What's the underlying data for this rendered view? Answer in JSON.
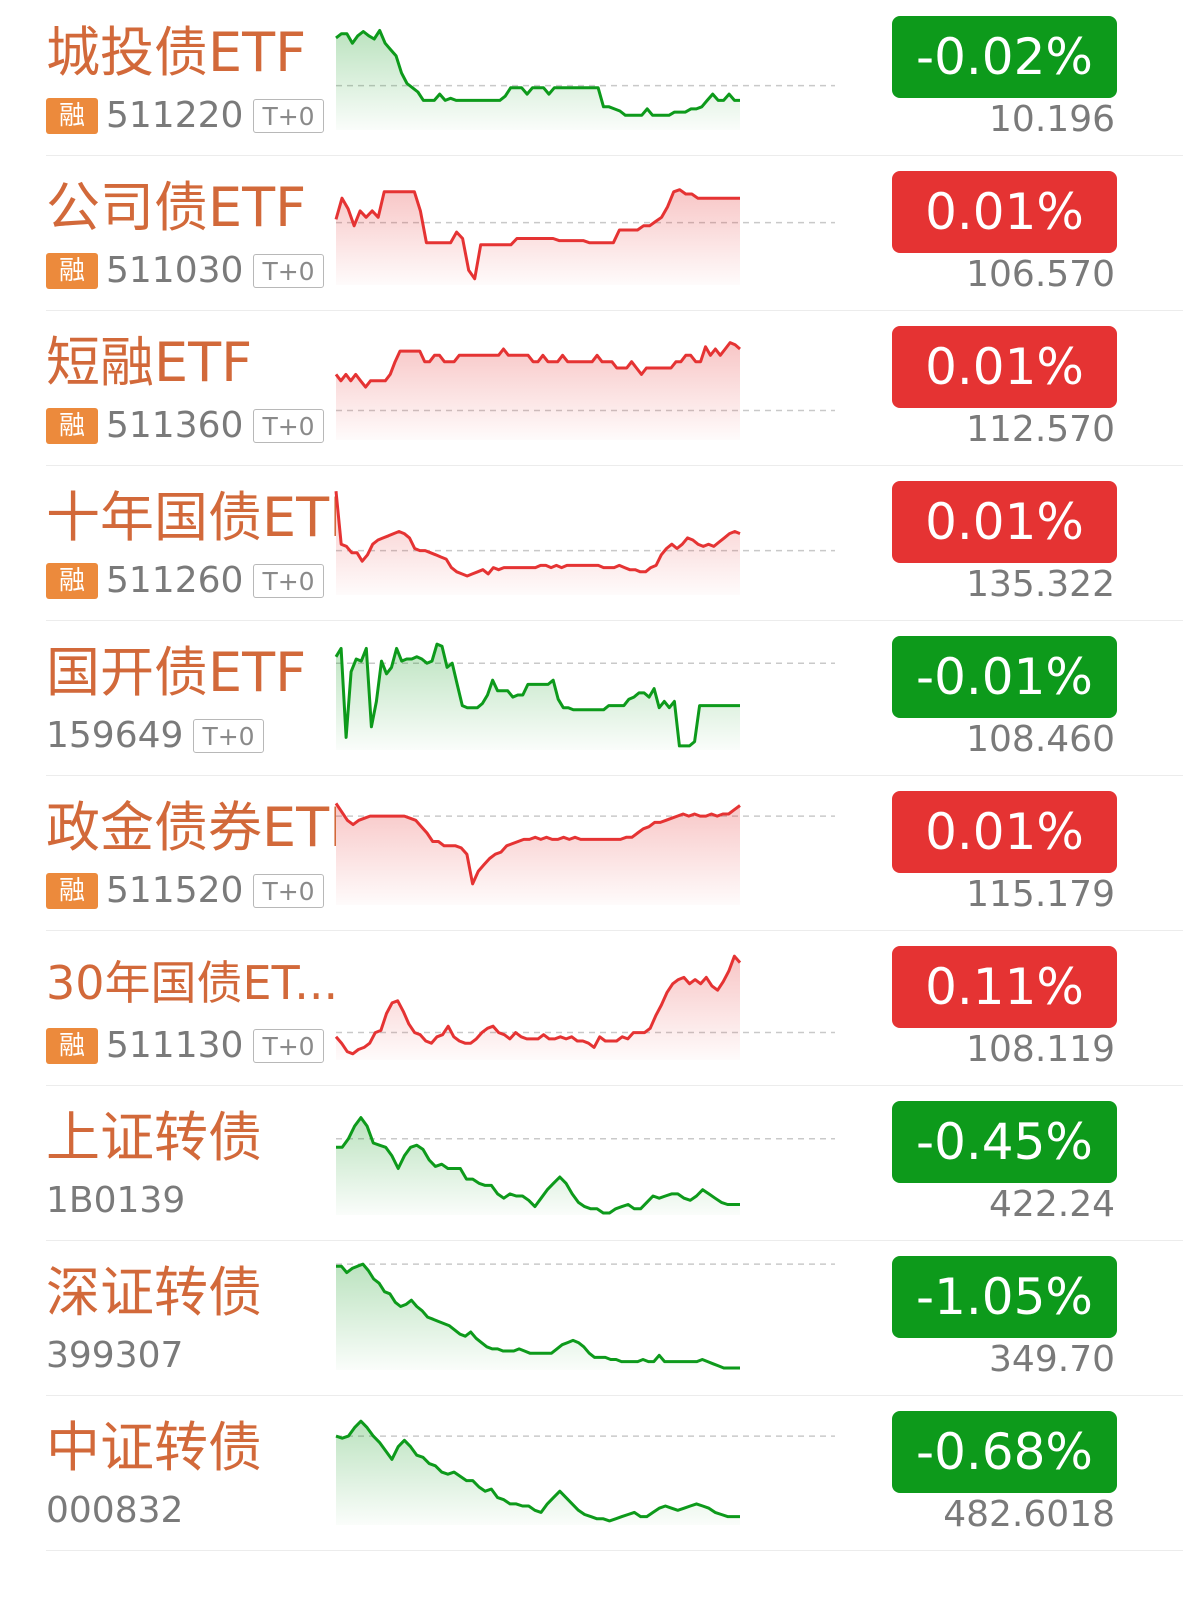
{
  "colors": {
    "up": "#e53333",
    "down": "#0d9a1b",
    "name": "#d2693a",
    "rong_badge": "#ec8a3c"
  },
  "items": [
    {
      "name": "城投债ETF",
      "rong": "融",
      "code": "511220",
      "tag": "T+0",
      "change": "-0.02%",
      "price": "10.196",
      "direction": "down",
      "sparkline": [
        85,
        89,
        89,
        80,
        87,
        91,
        87,
        84,
        92,
        80,
        74,
        68,
        52,
        42,
        38,
        34,
        26,
        26,
        26,
        32,
        26,
        28,
        26,
        26,
        26,
        26,
        26,
        26,
        26,
        26,
        26,
        30,
        38,
        38,
        38,
        32,
        38,
        38,
        38,
        32,
        38,
        38,
        38,
        38,
        38,
        38,
        38,
        38,
        38,
        20,
        20,
        18,
        16,
        12,
        12,
        12,
        12,
        18,
        12,
        12,
        12,
        12,
        15,
        15,
        15,
        18,
        18,
        20,
        26,
        32,
        26,
        26,
        32,
        26,
        26
      ],
      "reference": 40
    },
    {
      "name": "公司债ETF",
      "rong": "融",
      "code": "511030",
      "tag": "T+0",
      "change": "0.01%",
      "price": "106.570",
      "direction": "up",
      "sparkline": [
        60,
        80,
        70,
        54,
        68,
        62,
        68,
        62,
        86,
        86,
        86,
        86,
        86,
        86,
        68,
        38,
        38,
        38,
        38,
        38,
        48,
        42,
        12,
        4,
        36,
        36,
        36,
        36,
        36,
        36,
        42,
        42,
        42,
        42,
        42,
        42,
        42,
        40,
        40,
        40,
        40,
        40,
        38,
        38,
        38,
        38,
        38,
        50,
        50,
        50,
        50,
        54,
        54,
        58,
        62,
        72,
        86,
        88,
        84,
        84,
        80,
        80,
        80,
        80,
        80,
        80,
        80,
        80
      ],
      "reference": 57
    },
    {
      "name": "短融ETF",
      "rong": "融",
      "code": "511360",
      "tag": "T+0",
      "change": "0.01%",
      "price": "112.570",
      "direction": "up",
      "sparkline": [
        60,
        54,
        60,
        54,
        60,
        54,
        48,
        54,
        54,
        54,
        54,
        60,
        72,
        82,
        82,
        82,
        82,
        82,
        72,
        72,
        78,
        78,
        72,
        72,
        72,
        78,
        78,
        78,
        78,
        78,
        78,
        78,
        78,
        78,
        84,
        78,
        78,
        78,
        78,
        78,
        72,
        72,
        78,
        72,
        72,
        72,
        78,
        72,
        72,
        72,
        72,
        72,
        72,
        78,
        72,
        72,
        72,
        66,
        66,
        66,
        72,
        66,
        60,
        66,
        66,
        66,
        66,
        66,
        66,
        72,
        72,
        78,
        78,
        72,
        72,
        86,
        78,
        84,
        78,
        84,
        90,
        88,
        84
      ],
      "reference": 26
    },
    {
      "name": "十年国债ETF",
      "rong": "融",
      "code": "511260",
      "tag": "T+0",
      "change": "0.01%",
      "price": "135.322",
      "direction": "up",
      "sparkline": [
        96,
        46,
        44,
        38,
        38,
        30,
        36,
        46,
        50,
        52,
        54,
        56,
        58,
        56,
        52,
        42,
        40,
        40,
        38,
        36,
        34,
        32,
        24,
        20,
        18,
        16,
        18,
        20,
        22,
        18,
        24,
        22,
        24,
        24,
        24,
        24,
        24,
        24,
        24,
        26,
        26,
        24,
        26,
        24,
        26,
        26,
        26,
        26,
        26,
        26,
        26,
        24,
        24,
        24,
        26,
        24,
        22,
        22,
        20,
        20,
        24,
        26,
        36,
        42,
        46,
        42,
        46,
        52,
        50,
        46,
        44,
        46,
        44,
        48,
        52,
        56,
        58,
        56
      ],
      "reference": 40
    },
    {
      "name": "国开债ETF",
      "rong": "",
      "code": "159649",
      "tag": "T+0",
      "change": "-0.01%",
      "price": "108.460",
      "direction": "down",
      "sparkline": [
        86,
        94,
        10,
        72,
        84,
        82,
        94,
        20,
        44,
        82,
        70,
        76,
        94,
        82,
        84,
        84,
        86,
        84,
        80,
        82,
        98,
        96,
        76,
        80,
        60,
        40,
        38,
        38,
        38,
        42,
        50,
        64,
        54,
        54,
        54,
        48,
        50,
        50,
        60,
        60,
        60,
        60,
        60,
        64,
        46,
        38,
        38,
        36,
        36,
        36,
        36,
        36,
        36,
        36,
        40,
        40,
        40,
        40,
        46,
        48,
        52,
        52,
        48,
        56,
        38,
        44,
        38,
        44,
        2,
        2,
        2,
        6,
        40,
        40,
        40,
        40,
        40,
        40,
        40,
        40,
        40
      ],
      "reference": 80
    },
    {
      "name": "政金债券ETF",
      "rong": "融",
      "code": "511520",
      "tag": "T+0",
      "change": "0.01%",
      "price": "115.179",
      "direction": "up",
      "sparkline": [
        94,
        86,
        78,
        74,
        78,
        80,
        82,
        82,
        82,
        82,
        82,
        82,
        82,
        80,
        78,
        72,
        66,
        58,
        58,
        54,
        54,
        54,
        52,
        46,
        18,
        30,
        36,
        42,
        46,
        48,
        54,
        56,
        58,
        60,
        60,
        62,
        60,
        62,
        60,
        60,
        62,
        60,
        62,
        60,
        60,
        60,
        60,
        60,
        60,
        60,
        60,
        62,
        62,
        66,
        70,
        72,
        76,
        76,
        78,
        80,
        82,
        84,
        82,
        84,
        82,
        82,
        84,
        82,
        84,
        84,
        88,
        92
      ],
      "reference": 82
    },
    {
      "name": "30年国债ET...",
      "rong": "融",
      "code": "511130",
      "tag": "T+0",
      "change": "0.11%",
      "price": "108.119",
      "direction": "up",
      "sparkline": [
        20,
        14,
        6,
        4,
        8,
        10,
        14,
        24,
        26,
        42,
        52,
        54,
        44,
        32,
        24,
        22,
        16,
        14,
        20,
        22,
        30,
        20,
        16,
        14,
        14,
        18,
        24,
        28,
        30,
        24,
        22,
        18,
        24,
        20,
        18,
        18,
        18,
        22,
        18,
        18,
        20,
        18,
        20,
        16,
        16,
        14,
        10,
        20,
        16,
        16,
        16,
        20,
        18,
        24,
        24,
        24,
        28,
        40,
        50,
        62,
        70,
        74,
        76,
        70,
        74,
        70,
        76,
        68,
        64,
        72,
        82,
        96,
        90
      ],
      "reference": 24
    },
    {
      "name": "上证转债",
      "rong": "",
      "code": "1B0139",
      "tag": "",
      "change": "-0.45%",
      "price": "422.24",
      "direction": "down",
      "sparkline": [
        62,
        62,
        70,
        82,
        90,
        82,
        66,
        64,
        62,
        54,
        42,
        54,
        62,
        64,
        60,
        50,
        44,
        46,
        42,
        42,
        42,
        32,
        32,
        28,
        26,
        26,
        18,
        14,
        18,
        16,
        16,
        12,
        6,
        14,
        22,
        28,
        34,
        28,
        18,
        10,
        6,
        4,
        4,
        0,
        0,
        4,
        6,
        8,
        4,
        4,
        10,
        16,
        14,
        16,
        18,
        18,
        14,
        12,
        16,
        22,
        18,
        14,
        10,
        8,
        8,
        8
      ],
      "reference": 70
    },
    {
      "name": "深证转债",
      "rong": "",
      "code": "399307",
      "tag": "",
      "change": "-1.05%",
      "price": "349.70",
      "direction": "down",
      "sparkline": [
        96,
        96,
        90,
        94,
        96,
        98,
        92,
        84,
        80,
        72,
        70,
        62,
        58,
        60,
        64,
        58,
        54,
        48,
        46,
        44,
        42,
        40,
        36,
        32,
        30,
        34,
        28,
        24,
        20,
        18,
        18,
        16,
        16,
        16,
        18,
        16,
        14,
        14,
        14,
        14,
        14,
        18,
        22,
        24,
        26,
        24,
        20,
        14,
        10,
        10,
        10,
        8,
        8,
        6,
        6,
        6,
        6,
        8,
        6,
        6,
        12,
        6,
        6,
        6,
        6,
        6,
        6,
        6,
        8,
        6,
        4,
        2,
        0,
        0,
        0,
        0
      ],
      "reference": 98
    },
    {
      "name": "中证转债",
      "rong": "",
      "code": "000832",
      "tag": "",
      "change": "-0.68%",
      "price": "482.6018",
      "direction": "down",
      "sparkline": [
        82,
        80,
        82,
        90,
        96,
        90,
        82,
        76,
        68,
        60,
        72,
        78,
        72,
        64,
        62,
        56,
        54,
        48,
        46,
        48,
        44,
        40,
        40,
        34,
        30,
        32,
        24,
        22,
        18,
        18,
        16,
        16,
        12,
        10,
        18,
        24,
        30,
        24,
        18,
        12,
        8,
        6,
        4,
        4,
        2,
        4,
        6,
        8,
        10,
        6,
        6,
        10,
        14,
        16,
        14,
        12,
        14,
        16,
        18,
        16,
        14,
        10,
        8,
        6,
        6,
        6
      ],
      "reference": 82
    }
  ]
}
